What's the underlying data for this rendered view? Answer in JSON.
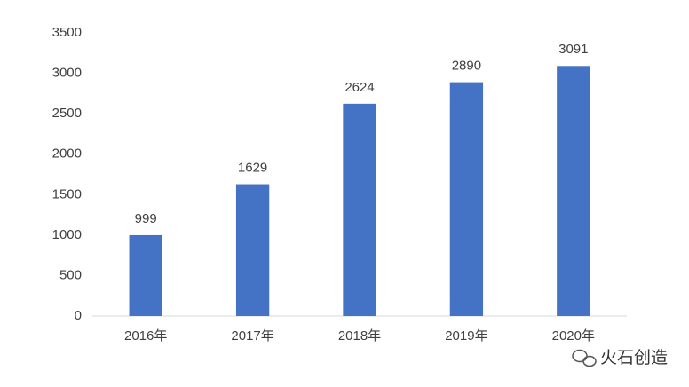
{
  "chart_data": {
    "type": "bar",
    "categories": [
      "2016年",
      "2017年",
      "2018年",
      "2019年",
      "2020年"
    ],
    "values": [
      999,
      1629,
      2624,
      2890,
      3091
    ],
    "color": "#4472c4",
    "ylim": [
      0,
      3500
    ],
    "yticks": [
      0,
      500,
      1000,
      1500,
      2000,
      2500,
      3000,
      3500
    ],
    "grid": false,
    "watermark": "火石创造"
  }
}
